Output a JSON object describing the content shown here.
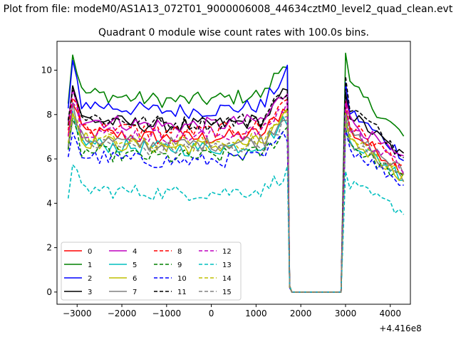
{
  "chart_data": {
    "type": "line",
    "suptitle": "Plot from file: modeM0/AS1A13_072T01_9000006008_44634cztM0_level2_quad_clean.evt",
    "title": "Quadrant 0 module wise count rates with 100.0s bins.",
    "xlabel": "",
    "ylabel": "",
    "x_offset_label": "+4.416e8",
    "xlim": [
      -3450,
      4450
    ],
    "ylim": [
      -0.55,
      11.3
    ],
    "xticks": [
      -3000,
      -2000,
      -1000,
      0,
      1000,
      2000,
      3000,
      4000
    ],
    "xtick_labels": [
      "−3000",
      "−2000",
      "−1000",
      "0",
      "1000",
      "2000",
      "3000",
      "4000"
    ],
    "yticks": [
      0,
      2,
      4,
      6,
      8,
      10
    ],
    "ytick_labels": [
      "0",
      "2",
      "4",
      "6",
      "8",
      "10"
    ],
    "grid": false,
    "legend_position": "lower-left",
    "gap": {
      "start": 1800,
      "end": 2900
    },
    "x_segment_1": {
      "start": -3200,
      "end": 1700,
      "step": 100
    },
    "x_segment_2": {
      "start": 3000,
      "end": 4300,
      "step": 100
    },
    "series": [
      {
        "name": "0",
        "color": "#ff0000",
        "dash": "solid",
        "level1": 7.3,
        "level2": 7.4
      },
      {
        "name": "1",
        "color": "#008000",
        "dash": "solid",
        "level1": 9.1,
        "level2": 9.5
      },
      {
        "name": "2",
        "color": "#0000ff",
        "dash": "solid",
        "level1": 8.6,
        "level2": 8.3
      },
      {
        "name": "3",
        "color": "#000000",
        "dash": "solid",
        "level1": 7.9,
        "level2": 8.2
      },
      {
        "name": "4",
        "color": "#bf00bf",
        "dash": "solid",
        "level1": 7.9,
        "level2": 7.9
      },
      {
        "name": "5",
        "color": "#00bfbf",
        "dash": "solid",
        "level1": 6.8,
        "level2": 7.0
      },
      {
        "name": "6",
        "color": "#bfbf00",
        "dash": "solid",
        "level1": 6.9,
        "level2": 7.0
      },
      {
        "name": "7",
        "color": "#808080",
        "dash": "solid",
        "level1": 7.0,
        "level2": 7.3
      },
      {
        "name": "8",
        "color": "#ff0000",
        "dash": "dashed",
        "level1": 7.6,
        "level2": 7.7
      },
      {
        "name": "9",
        "color": "#008000",
        "dash": "dashed",
        "level1": 6.4,
        "level2": 6.8
      },
      {
        "name": "10",
        "color": "#0000ff",
        "dash": "dashed",
        "level1": 6.2,
        "level2": 6.6
      },
      {
        "name": "11",
        "color": "#000000",
        "dash": "dashed",
        "level1": 8.0,
        "level2": 8.5
      },
      {
        "name": "12",
        "color": "#bf00bf",
        "dash": "dashed",
        "level1": 7.4,
        "level2": 7.5
      },
      {
        "name": "13",
        "color": "#00bfbf",
        "dash": "dashed",
        "level1": 4.7,
        "level2": 4.9
      },
      {
        "name": "14",
        "color": "#bfbf00",
        "dash": "dashed",
        "level1": 7.0,
        "level2": 7.1
      },
      {
        "name": "15",
        "color": "#808080",
        "dash": "dashed",
        "level1": 6.8,
        "level2": 6.9
      }
    ]
  }
}
